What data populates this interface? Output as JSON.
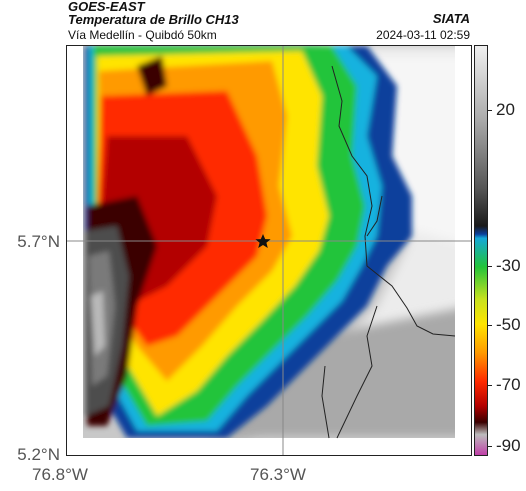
{
  "header": {
    "title_line1": "GOES-EAST",
    "title_line2": "Temperatura de Brillo CH13",
    "subtitle": "Vía Medellín - Quibdó 50km",
    "brand": "SIATA",
    "timestamp": "2024-03-11 02:59"
  },
  "map": {
    "y_ticks": [
      "5.7°N",
      "5.2°N"
    ],
    "x_ticks": [
      "76.8°W",
      "76.3°W"
    ],
    "marker_icon": "star-icon"
  },
  "colorbar": {
    "ticks": [
      "20",
      "-30",
      "-50",
      "-70",
      "-90"
    ],
    "stops": [
      "#f0f0f0",
      "#aaaaaa",
      "#555555",
      "#1a1a1a",
      "#0b3f9c",
      "#15a8d8",
      "#22c43a",
      "#c9e21e",
      "#ffe400",
      "#ff9a00",
      "#ff2a00",
      "#b30000",
      "#3a0000",
      "#bcbcbc",
      "#c040a8"
    ]
  }
}
